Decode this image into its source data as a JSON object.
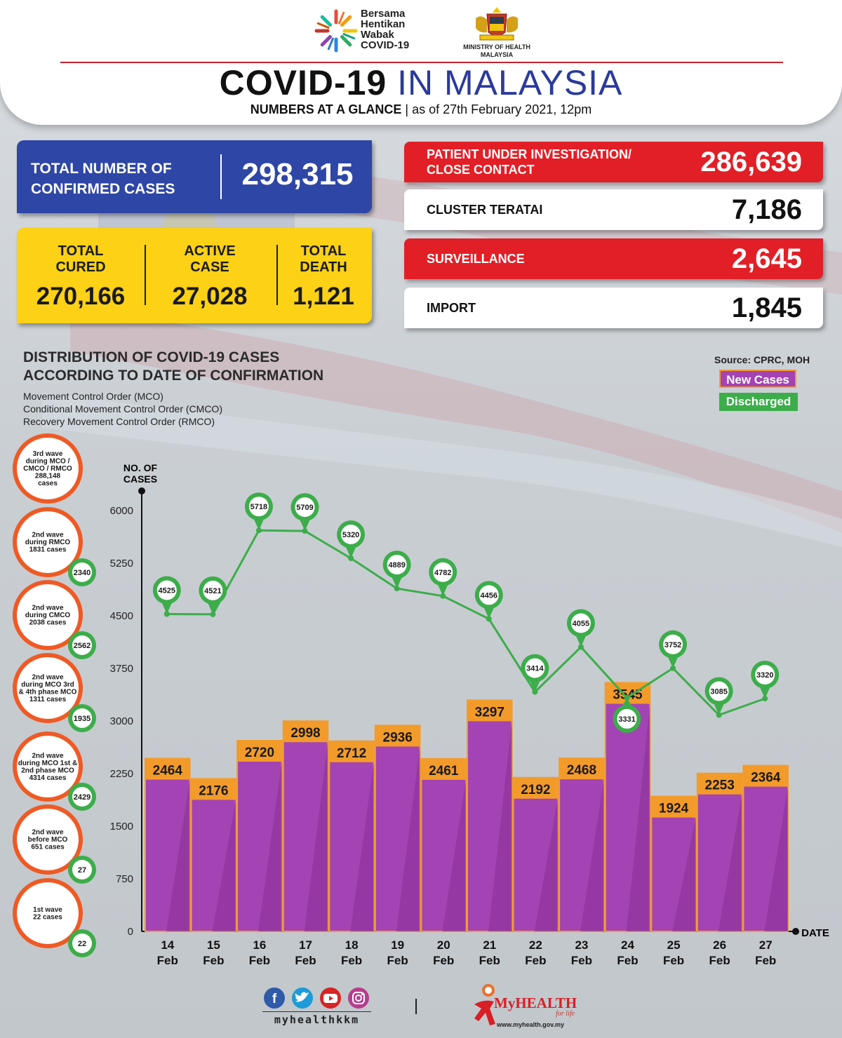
{
  "header": {
    "campaign_logo_text": [
      "Bersama",
      "Hentikan",
      "Wabak",
      "COVID-19"
    ],
    "ministry_text": [
      "MINISTRY OF HEALTH",
      "MALAYSIA"
    ],
    "title_part1": "COVID-19",
    "title_part2": "IN MALAYSIA",
    "subtitle_bold": "NUMBERS AT A GLANCE",
    "subtitle_date": "as of 27th February 2021, 12pm"
  },
  "summary": {
    "total_label": "TOTAL NUMBER OF CONFIRMED CASES",
    "total_value": "298,315",
    "cured_label": "TOTAL CURED",
    "cured_value": "270,166",
    "active_label": "ACTIVE CASE",
    "active_value": "27,028",
    "death_label": "TOTAL DEATH",
    "death_value": "1,121"
  },
  "categories": [
    {
      "label": "PATIENT UNDER INVESTIGATION/\nCLOSE CONTACT",
      "value": "286,639",
      "style": "red"
    },
    {
      "label": "CLUSTER TERATAI",
      "value": "7,186",
      "style": "white"
    },
    {
      "label": "SURVEILLANCE",
      "value": "2,645",
      "style": "red"
    },
    {
      "label": "IMPORT",
      "value": "1,845",
      "style": "white"
    }
  ],
  "distribution": {
    "title_line1": "DISTRIBUTION OF COVID-19 CASES",
    "title_line2": "ACCORDING TO DATE OF CONFIRMATION",
    "legend_lines": [
      "Movement Control Order (MCO)",
      "Conditional Movement Control Order (CMCO)",
      "Recovery Movement Control Order (RMCO)"
    ],
    "source": "Source: CPRC, MOH",
    "legend_new": "New Cases",
    "legend_discharged": "Discharged"
  },
  "waves": [
    {
      "lines": [
        "3rd wave",
        "during MCO /",
        "CMCO / RMCO",
        "288,148",
        "cases"
      ],
      "badge": ""
    },
    {
      "lines": [
        "2nd wave",
        "during RMCO",
        "1831 cases"
      ],
      "badge": "2340"
    },
    {
      "lines": [
        "2nd wave",
        "during CMCO",
        "2038 cases"
      ],
      "badge": "2562"
    },
    {
      "lines": [
        "2nd wave",
        "during MCO 3rd",
        "& 4th phase MCO",
        "1311 cases"
      ],
      "badge": "1935"
    },
    {
      "lines": [
        "2nd wave",
        "during MCO 1st &",
        "2nd phase MCO",
        "4314 cases"
      ],
      "badge": "2429"
    },
    {
      "lines": [
        "2nd wave",
        "before MCO",
        "651 cases"
      ],
      "badge": "27"
    },
    {
      "lines": [
        "1st wave",
        "22 cases"
      ],
      "badge": "22"
    }
  ],
  "chart_data": {
    "type": "bar",
    "ylabel": "NO. OF CASES",
    "xlabel": "DATE",
    "ylim": [
      0,
      6000
    ],
    "yticks": [
      0,
      750,
      1500,
      2250,
      3000,
      3750,
      4500,
      5250,
      6000
    ],
    "categories": [
      [
        "14",
        "Feb"
      ],
      [
        "15",
        "Feb"
      ],
      [
        "16",
        "Feb"
      ],
      [
        "17",
        "Feb"
      ],
      [
        "18",
        "Feb"
      ],
      [
        "19",
        "Feb"
      ],
      [
        "20",
        "Feb"
      ],
      [
        "21",
        "Feb"
      ],
      [
        "22",
        "Feb"
      ],
      [
        "23",
        "Feb"
      ],
      [
        "24",
        "Feb"
      ],
      [
        "25",
        "Feb"
      ],
      [
        "26",
        "Feb"
      ],
      [
        "27",
        "Feb"
      ]
    ],
    "series": [
      {
        "name": "New Cases",
        "type": "bar",
        "color": "#a443b3",
        "values": [
          2464,
          2176,
          2720,
          2998,
          2712,
          2936,
          2461,
          3297,
          2192,
          2468,
          3545,
          1924,
          2253,
          2364
        ]
      },
      {
        "name": "Discharged",
        "type": "line",
        "color": "#3cad4a",
        "values": [
          4525,
          4521,
          5718,
          5709,
          5320,
          4889,
          4782,
          4456,
          3414,
          4055,
          3331,
          3752,
          3085,
          3320
        ]
      }
    ]
  },
  "footer": {
    "social_handle": "myhealthkkm",
    "brand": "MyHEALTH",
    "tagline": "for life",
    "url": "www.myhealth.gov.my",
    "social_icons": [
      "facebook-icon",
      "twitter-icon",
      "youtube-icon",
      "instagram-icon"
    ]
  }
}
